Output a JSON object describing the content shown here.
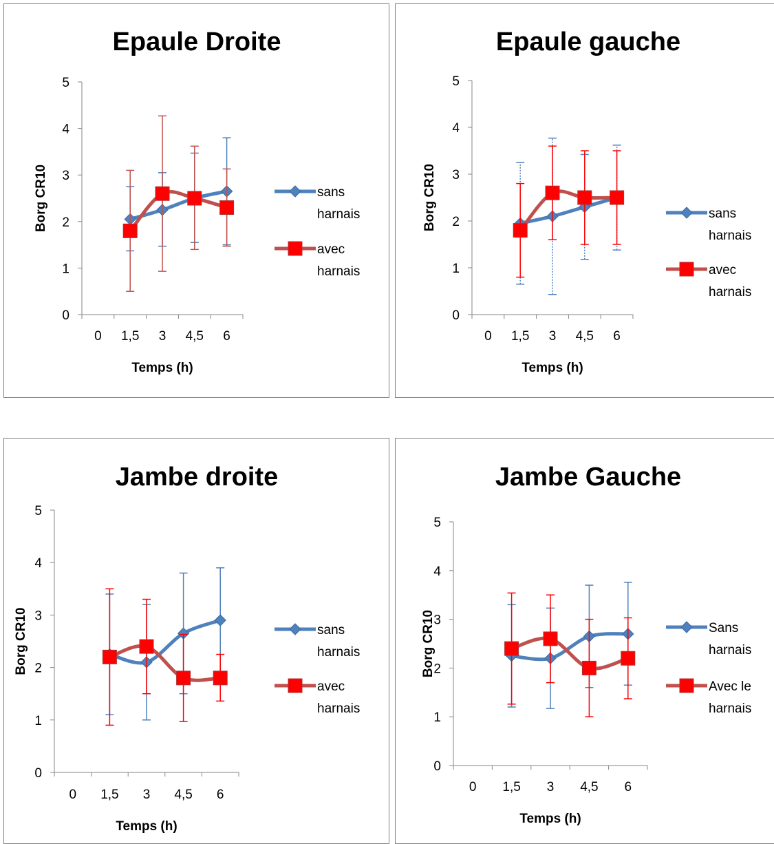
{
  "chart_data": [
    {
      "type": "line",
      "title": "Epaule Droite",
      "xlabel": "Temps (h)",
      "ylabel": "Borg CR10",
      "categories": [
        "0",
        "1,5",
        "3",
        "4,5",
        "6"
      ],
      "ylim": [
        0,
        5
      ],
      "yticks": [
        "0",
        "1",
        "2",
        "3",
        "4",
        "5"
      ],
      "grid": false,
      "legend_position": "right",
      "series": [
        {
          "name": "sans harnais",
          "legend_lines": [
            "sans",
            "harnais"
          ],
          "color": "#4F81BD",
          "marker": "diamond",
          "error_color": "#4F81BD",
          "values": [
            null,
            2.05,
            2.25,
            2.5,
            2.65
          ],
          "error_low": [
            null,
            1.37,
            1.47,
            1.55,
            1.5
          ],
          "error_high": [
            null,
            2.75,
            3.05,
            3.47,
            3.8
          ]
        },
        {
          "name": "avec harnais",
          "legend_lines": [
            "avec",
            "harnais"
          ],
          "color": "#C0504D",
          "marker": "square",
          "marker_color": "#FF0000",
          "error_color": "#C0504D",
          "values": [
            null,
            1.8,
            2.6,
            2.5,
            2.3
          ],
          "error_low": [
            null,
            0.5,
            0.93,
            1.4,
            1.47
          ],
          "error_high": [
            null,
            3.1,
            4.27,
            3.62,
            3.13
          ]
        }
      ]
    },
    {
      "type": "line",
      "title": "Epaule gauche",
      "xlabel": "Temps (h)",
      "ylabel": "Borg CR10",
      "categories": [
        "0",
        "1,5",
        "3",
        "4,5",
        "6"
      ],
      "ylim": [
        0,
        5
      ],
      "yticks": [
        "0",
        "1",
        "2",
        "3",
        "4",
        "5"
      ],
      "grid": false,
      "legend_position": "right",
      "series": [
        {
          "name": "sans harnais",
          "legend_lines": [
            "sans",
            "harnais"
          ],
          "color": "#4F81BD",
          "marker": "diamond",
          "error_color": "#4F81BD",
          "error_dashed": true,
          "values": [
            null,
            1.95,
            2.1,
            2.3,
            2.5
          ],
          "error_low": [
            null,
            0.65,
            0.43,
            1.18,
            1.38
          ],
          "error_high": [
            null,
            3.25,
            3.77,
            3.42,
            3.62
          ]
        },
        {
          "name": "avec harnais",
          "legend_lines": [
            "avec",
            "harnais"
          ],
          "color": "#C0504D",
          "marker": "square",
          "marker_color": "#FF0000",
          "error_color": "#FF0000",
          "values": [
            null,
            1.8,
            2.6,
            2.5,
            2.5
          ],
          "error_low": [
            null,
            0.8,
            1.6,
            1.5,
            1.5
          ],
          "error_high": [
            null,
            2.8,
            3.6,
            3.5,
            3.5
          ]
        }
      ]
    },
    {
      "type": "line",
      "title": "Jambe droite",
      "xlabel": "Temps (h)",
      "ylabel": "Borg CR10",
      "categories": [
        "0",
        "1,5",
        "3",
        "4,5",
        "6"
      ],
      "ylim": [
        0,
        5
      ],
      "yticks": [
        "0",
        "1",
        "2",
        "3",
        "4",
        "5"
      ],
      "grid": false,
      "legend_position": "right",
      "series": [
        {
          "name": "sans harnais",
          "legend_lines": [
            "sans",
            "harnais"
          ],
          "color": "#4F81BD",
          "marker": "diamond",
          "error_color": "#4F81BD",
          "values": [
            null,
            2.25,
            2.1,
            2.65,
            2.9
          ],
          "error_low": [
            null,
            1.1,
            1.0,
            1.5,
            1.9
          ],
          "error_high": [
            null,
            3.4,
            3.2,
            3.8,
            3.9
          ]
        },
        {
          "name": "avec harnais",
          "legend_lines": [
            "avec",
            "harnais"
          ],
          "color": "#C0504D",
          "marker": "square",
          "marker_color": "#FF0000",
          "error_color": "#FF0000",
          "values": [
            null,
            2.2,
            2.4,
            1.8,
            1.8
          ],
          "error_low": [
            null,
            0.9,
            1.5,
            0.97,
            1.36
          ],
          "error_high": [
            null,
            3.5,
            3.3,
            2.63,
            2.25
          ]
        }
      ]
    },
    {
      "type": "line",
      "title": "Jambe Gauche",
      "xlabel": "Temps (h)",
      "ylabel": "Borg CR10",
      "categories": [
        "0",
        "1,5",
        "3",
        "4,5",
        "6"
      ],
      "ylim": [
        0,
        5
      ],
      "yticks": [
        "0",
        "1",
        "2",
        "3",
        "4",
        "5"
      ],
      "grid": false,
      "legend_position": "right",
      "series": [
        {
          "name": "Sans harnais",
          "legend_lines": [
            "Sans",
            "harnais"
          ],
          "color": "#4F81BD",
          "marker": "diamond",
          "error_color": "#4F81BD",
          "values": [
            null,
            2.25,
            2.2,
            2.65,
            2.7
          ],
          "error_low": [
            null,
            1.2,
            1.17,
            1.6,
            1.65
          ],
          "error_high": [
            null,
            3.3,
            3.23,
            3.7,
            3.76
          ]
        },
        {
          "name": "Avec le harnais",
          "legend_lines": [
            "Avec le",
            "harnais"
          ],
          "color": "#C0504D",
          "marker": "square",
          "marker_color": "#FF0000",
          "error_color": "#FF0000",
          "values": [
            null,
            2.4,
            2.6,
            2.0,
            2.2
          ],
          "error_low": [
            null,
            1.26,
            1.7,
            1.0,
            1.37
          ],
          "error_high": [
            null,
            3.54,
            3.5,
            3.0,
            3.03
          ]
        }
      ]
    }
  ]
}
